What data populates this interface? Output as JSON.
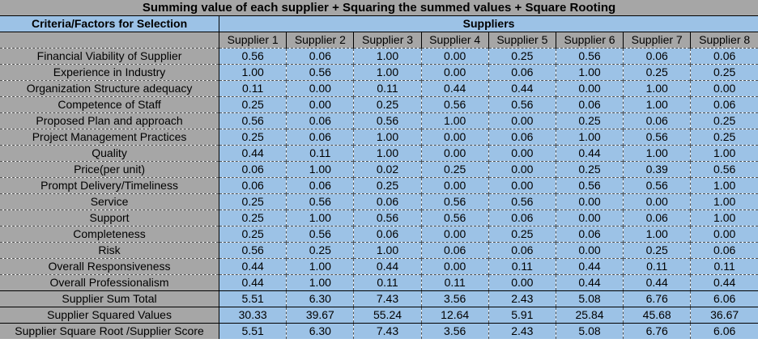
{
  "title": "Summing value of each supplier + Squaring the summed values + Square Rooting",
  "header": {
    "criteria_label": "Criteria/Factors for Selection",
    "suppliers_label": "Suppliers"
  },
  "suppliers": [
    "Supplier 1",
    "Supplier 2",
    "Supplier 3",
    "Supplier 4",
    "Supplier 5",
    "Supplier 6",
    "Supplier 7",
    "Supplier 8"
  ],
  "rows": [
    {
      "label": "Financial Viability of Supplier",
      "values": [
        "0.56",
        "0.06",
        "1.00",
        "0.00",
        "0.25",
        "0.56",
        "0.06",
        "0.06"
      ]
    },
    {
      "label": "Experience in Industry",
      "values": [
        "1.00",
        "0.56",
        "1.00",
        "0.00",
        "0.06",
        "1.00",
        "0.25",
        "0.25"
      ]
    },
    {
      "label": "Organization Structure adequacy",
      "values": [
        "0.11",
        "0.00",
        "0.11",
        "0.44",
        "0.44",
        "0.00",
        "1.00",
        "0.00"
      ]
    },
    {
      "label": "Competence of Staff",
      "values": [
        "0.25",
        "0.00",
        "0.25",
        "0.56",
        "0.56",
        "0.06",
        "1.00",
        "0.06"
      ]
    },
    {
      "label": "Proposed Plan and approach",
      "values": [
        "0.56",
        "0.06",
        "0.56",
        "1.00",
        "0.00",
        "0.25",
        "0.06",
        "0.25"
      ]
    },
    {
      "label": "Project Management Practices",
      "values": [
        "0.25",
        "0.06",
        "1.00",
        "0.00",
        "0.06",
        "1.00",
        "0.56",
        "0.25"
      ]
    },
    {
      "label": "Quality",
      "values": [
        "0.44",
        "0.11",
        "1.00",
        "0.00",
        "0.00",
        "0.44",
        "1.00",
        "1.00"
      ]
    },
    {
      "label": "Price(per unit)",
      "values": [
        "0.06",
        "1.00",
        "0.02",
        "0.25",
        "0.00",
        "0.25",
        "0.39",
        "0.56"
      ]
    },
    {
      "label": "Prompt Delivery/Timeliness",
      "values": [
        "0.06",
        "0.06",
        "0.25",
        "0.00",
        "0.00",
        "0.56",
        "0.56",
        "1.00"
      ]
    },
    {
      "label": "Service",
      "values": [
        "0.25",
        "0.56",
        "0.06",
        "0.56",
        "0.56",
        "0.00",
        "0.00",
        "1.00"
      ]
    },
    {
      "label": "Support",
      "values": [
        "0.25",
        "1.00",
        "0.56",
        "0.56",
        "0.06",
        "0.00",
        "0.06",
        "1.00"
      ]
    },
    {
      "label": "Completeness",
      "values": [
        "0.25",
        "0.56",
        "0.06",
        "0.00",
        "0.25",
        "0.06",
        "1.00",
        "0.00"
      ]
    },
    {
      "label": "Risk",
      "values": [
        "0.56",
        "0.25",
        "1.00",
        "0.06",
        "0.06",
        "0.00",
        "0.25",
        "0.06"
      ]
    },
    {
      "label": "Overall Responsiveness",
      "values": [
        "0.44",
        "1.00",
        "0.44",
        "0.00",
        "0.11",
        "0.44",
        "0.11",
        "0.11"
      ]
    },
    {
      "label": "Overall Professionalism",
      "values": [
        "0.44",
        "1.00",
        "0.11",
        "0.11",
        "0.00",
        "0.44",
        "0.44",
        "0.44"
      ]
    }
  ],
  "summary": [
    {
      "label": "Supplier Sum Total",
      "values": [
        "5.51",
        "6.30",
        "7.43",
        "3.56",
        "2.43",
        "5.08",
        "6.76",
        "6.06"
      ]
    },
    {
      "label": "Supplier Squared Values",
      "values": [
        "30.33",
        "39.67",
        "55.24",
        "12.64",
        "5.91",
        "25.84",
        "45.68",
        "36.67"
      ]
    },
    {
      "label": "Supplier Square Root /Supplier Score",
      "values": [
        "5.51",
        "6.30",
        "7.43",
        "3.56",
        "2.43",
        "5.08",
        "6.76",
        "6.06"
      ]
    }
  ]
}
